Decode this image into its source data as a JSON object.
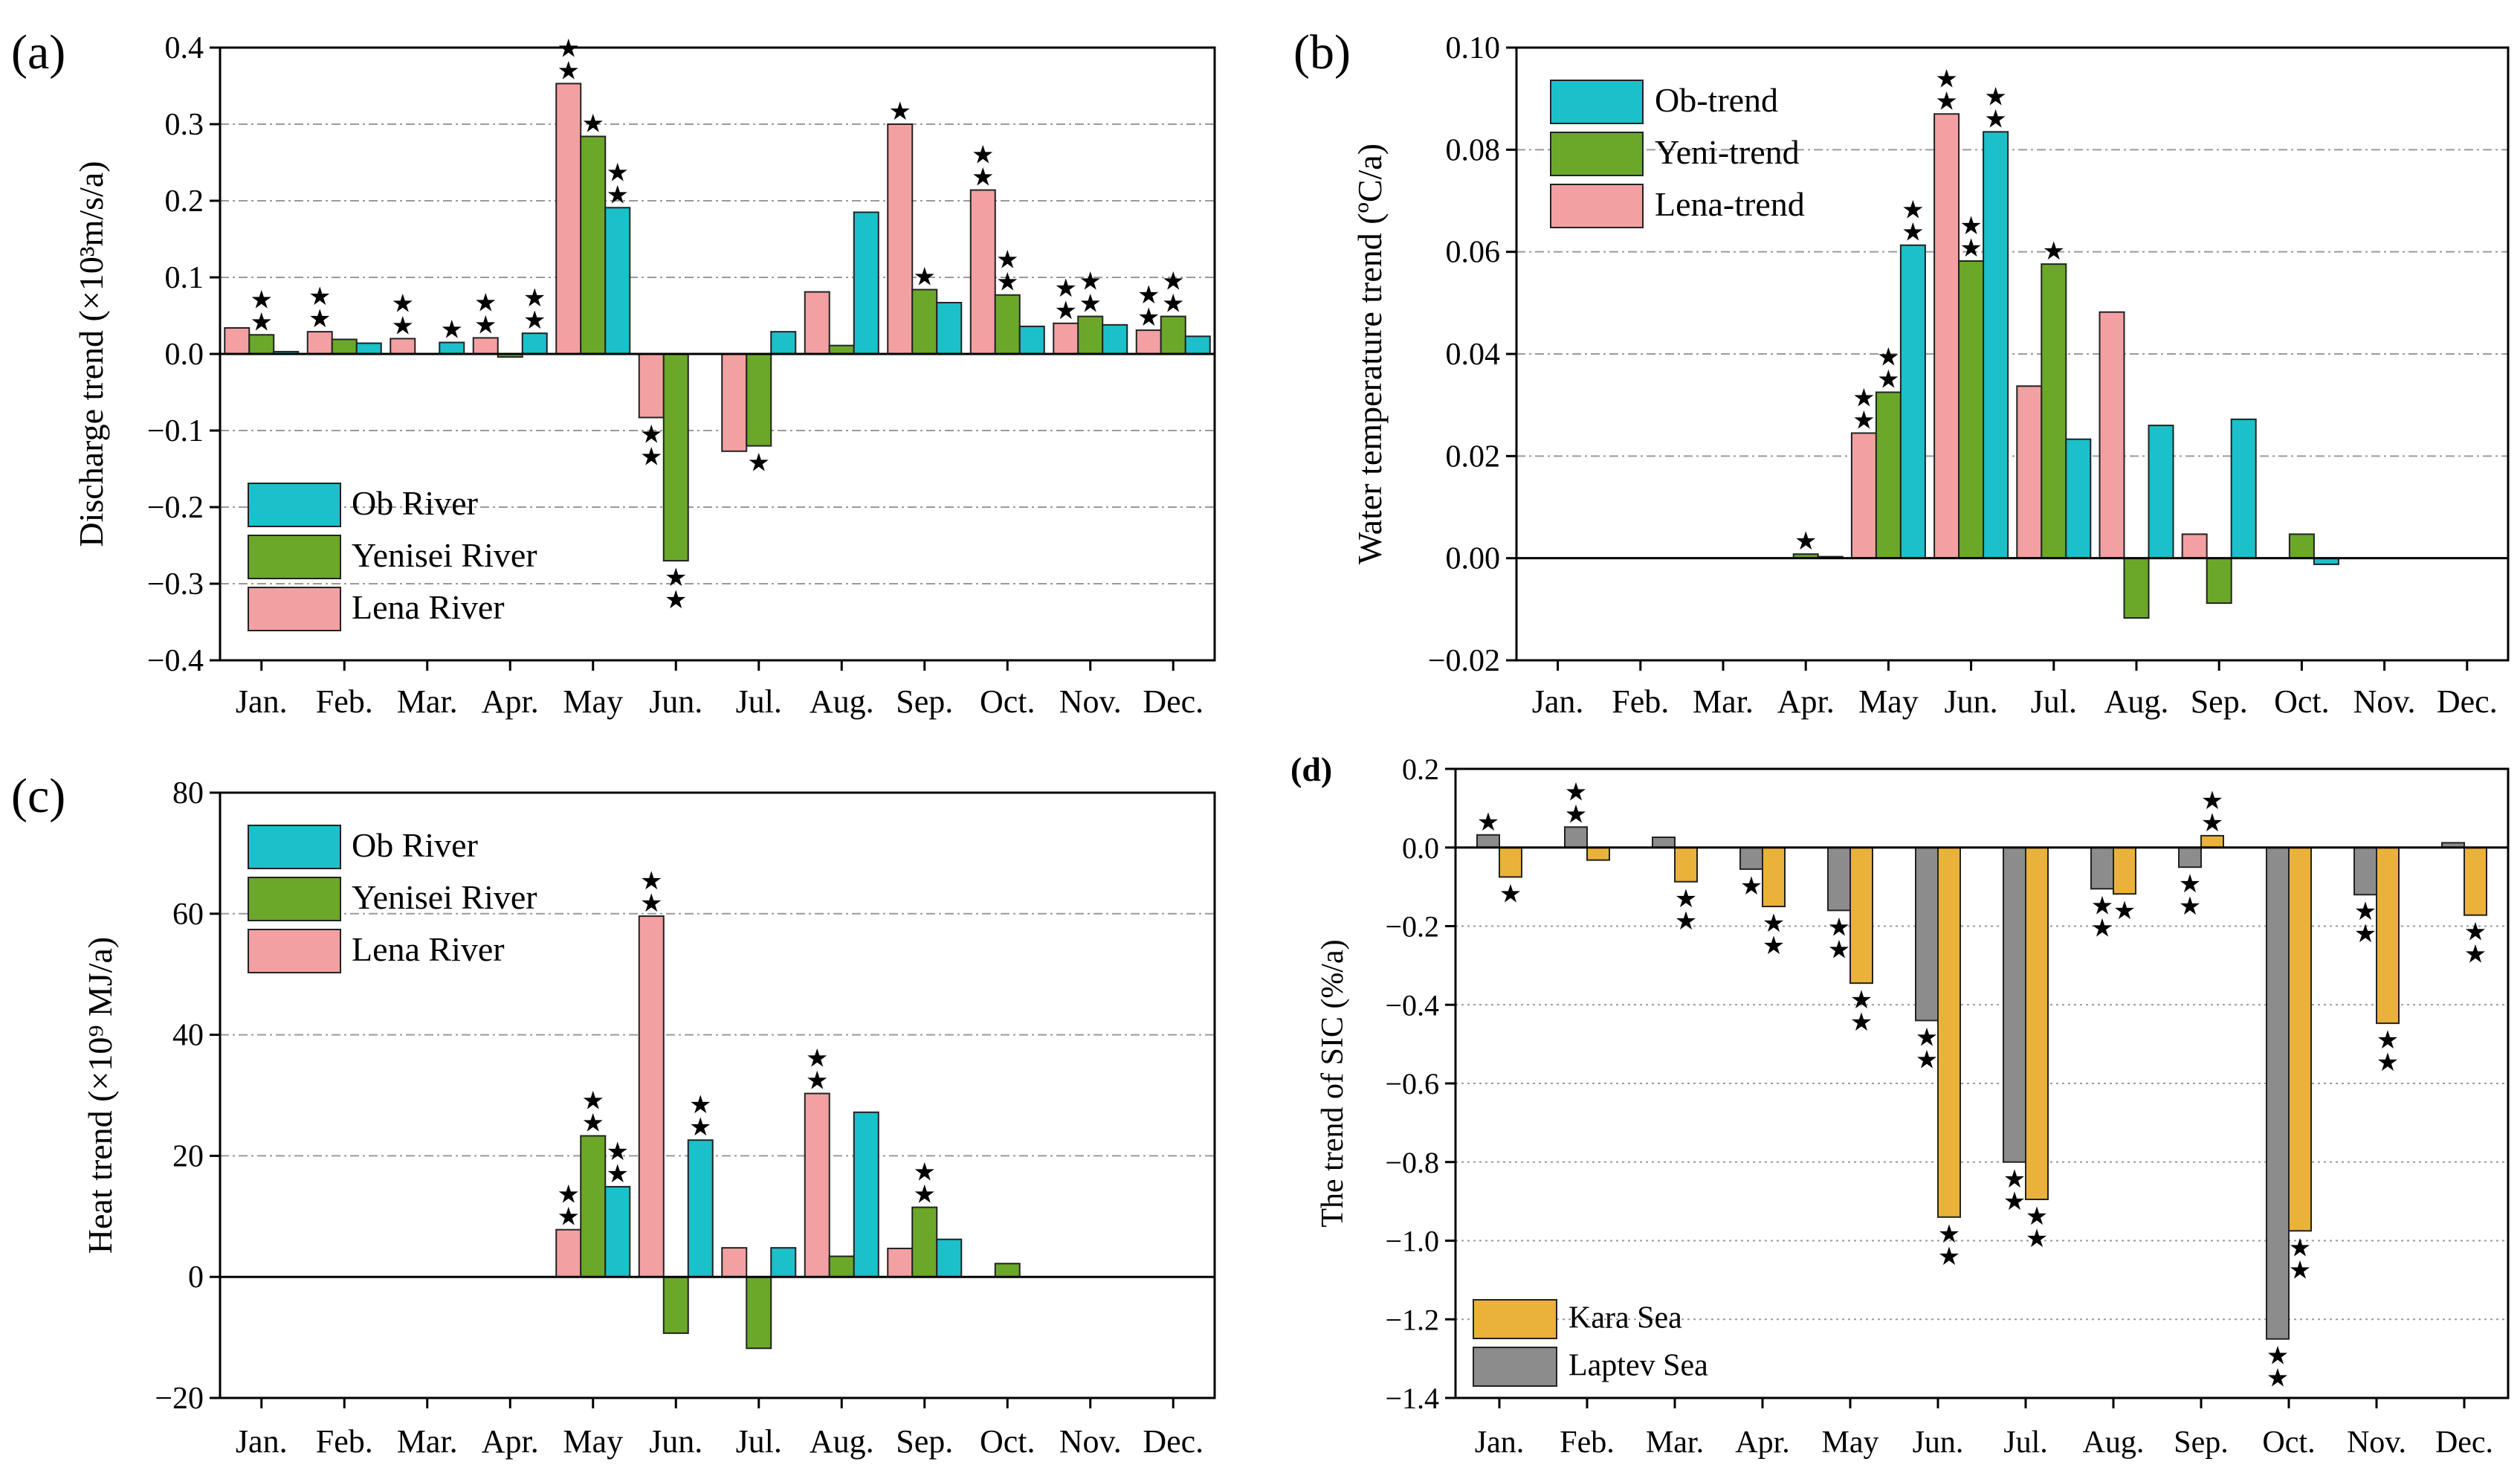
{
  "months": [
    "Jan.",
    "Feb.",
    "Mar.",
    "Apr.",
    "May",
    "Jun.",
    "Jul.",
    "Aug.",
    "Sep.",
    "Oct.",
    "Nov.",
    "Dec."
  ],
  "colors": {
    "ob": "#1CC0CA",
    "yenisei": "#6BA82A",
    "lena": "#F3A0A3",
    "kara": "#EAB23A",
    "laptev": "#8C8C8C"
  },
  "chart_data": [
    {
      "id": "a",
      "type": "bar",
      "panel_label": "(a)",
      "ylabel": "Discharge trend (×10³m/s/a)",
      "ylim": [
        -0.4,
        0.4
      ],
      "yticks": [
        "0.4",
        "0.3",
        "0.2",
        "0.1",
        "0.0",
        "−0.1",
        "−0.2",
        "−0.3",
        "−0.4"
      ],
      "ytick_values": [
        0.4,
        0.3,
        0.2,
        0.1,
        0.0,
        -0.1,
        -0.2,
        -0.3,
        -0.4
      ],
      "grid": true,
      "legend_position": "bottom-left",
      "series": [
        {
          "key": "lena",
          "name": "Lena River",
          "values": [
            0.034,
            0.029,
            0.02,
            0.021,
            0.353,
            -0.083,
            -0.127,
            0.081,
            0.3,
            0.214,
            0.04,
            0.031
          ],
          "stars": [
            0,
            2,
            2,
            2,
            2,
            2,
            0,
            0,
            1,
            2,
            2,
            2
          ]
        },
        {
          "key": "yenisei",
          "name": "Yenisei River",
          "values": [
            0.025,
            0.019,
            0.0,
            -0.004,
            0.284,
            -0.27,
            -0.12,
            0.011,
            0.084,
            0.077,
            0.049,
            0.049
          ],
          "stars": [
            2,
            0,
            0,
            0,
            1,
            2,
            1,
            0,
            1,
            2,
            2,
            2
          ]
        },
        {
          "key": "ob",
          "name": "Ob River",
          "values": [
            0.003,
            0.014,
            0.015,
            0.027,
            0.191,
            0.0,
            0.029,
            0.185,
            0.067,
            0.036,
            0.038,
            0.023
          ],
          "stars": [
            0,
            0,
            1,
            2,
            2,
            0,
            0,
            0,
            0,
            0,
            0,
            0
          ]
        }
      ],
      "legend": [
        {
          "key": "ob",
          "label": "Ob River"
        },
        {
          "key": "yenisei",
          "label": "Yenisei River"
        },
        {
          "key": "lena",
          "label": "Lena River"
        }
      ]
    },
    {
      "id": "b",
      "type": "bar",
      "panel_label": "(b)",
      "ylabel": "Water temperature trend (ºC/a)",
      "ylim": [
        -0.02,
        0.1
      ],
      "yticks": [
        "0.10",
        "0.08",
        "0.06",
        "0.04",
        "0.02",
        "0.00",
        "−0.02"
      ],
      "ytick_values": [
        0.1,
        0.08,
        0.06,
        0.04,
        0.02,
        0.0,
        -0.02
      ],
      "grid": true,
      "legend_position": "top-left",
      "series": [
        {
          "key": "lena",
          "name": "Lena-trend",
          "values": [
            0,
            0,
            0,
            0,
            0.0245,
            0.087,
            0.0337,
            0.0482,
            0.0047,
            0,
            0,
            0
          ],
          "stars": [
            0,
            0,
            0,
            0,
            2,
            2,
            0,
            0,
            0,
            0,
            0,
            0
          ]
        },
        {
          "key": "yenisei",
          "name": "Yeni-trend",
          "values": [
            0,
            0,
            0,
            0.0008,
            0.0325,
            0.0582,
            0.0576,
            -0.0117,
            -0.0088,
            0.0047,
            0,
            0
          ],
          "stars": [
            0,
            0,
            0,
            1,
            2,
            2,
            1,
            0,
            0,
            0,
            0,
            0
          ]
        },
        {
          "key": "ob",
          "name": "Ob-trend",
          "values": [
            0,
            0,
            0,
            0.0003,
            0.0613,
            0.0835,
            0.0233,
            0.026,
            0.0272,
            -0.0012,
            0,
            0
          ],
          "stars": [
            0,
            0,
            0,
            0,
            2,
            2,
            0,
            0,
            0,
            0,
            0,
            0
          ]
        }
      ],
      "legend": [
        {
          "key": "ob",
          "label": "Ob-trend"
        },
        {
          "key": "yenisei",
          "label": "Yeni-trend"
        },
        {
          "key": "lena",
          "label": "Lena-trend"
        }
      ]
    },
    {
      "id": "c",
      "type": "bar",
      "panel_label": "(c)",
      "ylabel": "Heat trend (×10⁹ MJ/a)",
      "ylim": [
        -20,
        80
      ],
      "yticks": [
        "80",
        "60",
        "40",
        "20",
        "0",
        "−20"
      ],
      "ytick_values": [
        80,
        60,
        40,
        20,
        0,
        -20
      ],
      "grid": true,
      "legend_position": "top-left",
      "series": [
        {
          "key": "lena",
          "name": "Lena River",
          "values": [
            0,
            0,
            0,
            0,
            7.8,
            59.6,
            4.8,
            30.3,
            4.7,
            0,
            0,
            0
          ],
          "stars": [
            0,
            0,
            0,
            0,
            2,
            2,
            0,
            2,
            0,
            0,
            0,
            0
          ]
        },
        {
          "key": "yenisei",
          "name": "Yenisei River",
          "values": [
            0,
            0,
            0,
            0,
            23.3,
            -9.3,
            -11.8,
            3.4,
            11.5,
            2.2,
            0,
            0
          ],
          "stars": [
            0,
            0,
            0,
            0,
            2,
            0,
            0,
            0,
            2,
            0,
            0,
            0
          ]
        },
        {
          "key": "ob",
          "name": "Ob River",
          "values": [
            0,
            0,
            0,
            0,
            14.9,
            22.6,
            4.8,
            27.2,
            6.2,
            0,
            0,
            0
          ],
          "stars": [
            0,
            0,
            0,
            0,
            2,
            2,
            0,
            0,
            0,
            0,
            0,
            0
          ]
        }
      ],
      "legend": [
        {
          "key": "ob",
          "label": "Ob River"
        },
        {
          "key": "yenisei",
          "label": "Yenisei River"
        },
        {
          "key": "lena",
          "label": "Lena River"
        }
      ]
    },
    {
      "id": "d",
      "type": "bar",
      "panel_label": "(d)",
      "ylabel": "The trend of SIC (%/a)",
      "ylim": [
        -1.4,
        0.2
      ],
      "yticks": [
        "0.2",
        "0.0",
        "−0.2",
        "−0.4",
        "−0.6",
        "−0.8",
        "−1.0",
        "−1.2",
        "−1.4"
      ],
      "ytick_values": [
        0.2,
        0.0,
        -0.2,
        -0.4,
        -0.6,
        -0.8,
        -1.0,
        -1.2,
        -1.4
      ],
      "grid": true,
      "legend_position": "bottom-left",
      "series": [
        {
          "key": "laptev",
          "name": "Laptev Sea",
          "values": [
            0.032,
            0.052,
            0.026,
            -0.055,
            -0.16,
            -0.44,
            -0.8,
            -0.105,
            -0.05,
            -1.25,
            -0.12,
            0.012
          ],
          "stars": [
            1,
            2,
            0,
            1,
            2,
            2,
            2,
            2,
            2,
            2,
            2,
            0
          ]
        },
        {
          "key": "kara",
          "name": "Kara Sea",
          "values": [
            -0.075,
            -0.032,
            -0.087,
            -0.15,
            -0.345,
            -0.94,
            -0.895,
            -0.118,
            0.03,
            -0.975,
            -0.447,
            -0.172
          ],
          "stars": [
            1,
            0,
            2,
            2,
            2,
            2,
            2,
            1,
            2,
            2,
            2,
            2
          ]
        }
      ],
      "legend": [
        {
          "key": "kara",
          "label": "Kara Sea"
        },
        {
          "key": "laptev",
          "label": "Laptev Sea"
        }
      ]
    }
  ]
}
